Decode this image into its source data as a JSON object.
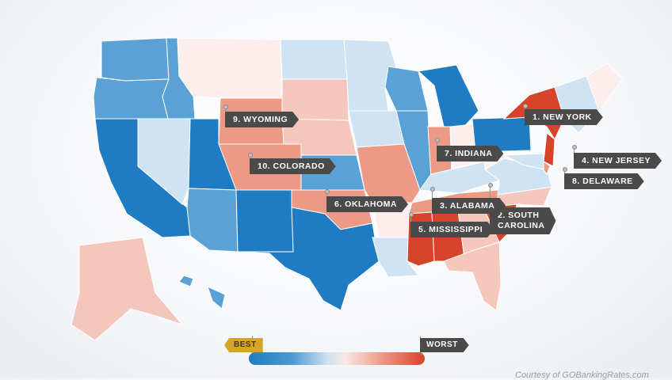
{
  "colors": {
    "best_dark": "#1f7cc2",
    "best_mid": "#5aa2d6",
    "best_light": "#cfe3f2",
    "neutral": "#fbeeed",
    "worst_light": "#f5c6bc",
    "worst_mid": "#ec9a86",
    "worst_dark": "#d6432b"
  },
  "states": [
    {
      "id": "WA",
      "shade": "best_mid"
    },
    {
      "id": "OR",
      "shade": "best_mid"
    },
    {
      "id": "CA",
      "shade": "best_dark"
    },
    {
      "id": "NV",
      "shade": "best_light"
    },
    {
      "id": "ID",
      "shade": "best_mid"
    },
    {
      "id": "MT",
      "shade": "neutral"
    },
    {
      "id": "WY",
      "shade": "worst_mid"
    },
    {
      "id": "UT",
      "shade": "best_dark"
    },
    {
      "id": "AZ",
      "shade": "best_mid"
    },
    {
      "id": "CO",
      "shade": "worst_mid"
    },
    {
      "id": "NM",
      "shade": "best_dark"
    },
    {
      "id": "ND",
      "shade": "best_light"
    },
    {
      "id": "SD",
      "shade": "worst_light"
    },
    {
      "id": "NE",
      "shade": "worst_light"
    },
    {
      "id": "KS",
      "shade": "best_mid"
    },
    {
      "id": "OK",
      "shade": "worst_mid"
    },
    {
      "id": "TX",
      "shade": "best_dark"
    },
    {
      "id": "MN",
      "shade": "best_light"
    },
    {
      "id": "IA",
      "shade": "best_light"
    },
    {
      "id": "MO",
      "shade": "worst_mid"
    },
    {
      "id": "AR",
      "shade": "neutral"
    },
    {
      "id": "LA",
      "shade": "best_light"
    },
    {
      "id": "WI",
      "shade": "best_mid"
    },
    {
      "id": "IL",
      "shade": "best_mid"
    },
    {
      "id": "MI",
      "shade": "best_dark"
    },
    {
      "id": "IN",
      "shade": "worst_mid"
    },
    {
      "id": "OH",
      "shade": "neutral"
    },
    {
      "id": "KY",
      "shade": "best_light"
    },
    {
      "id": "TN",
      "shade": "worst_mid"
    },
    {
      "id": "MS",
      "shade": "worst_dark"
    },
    {
      "id": "AL",
      "shade": "worst_dark"
    },
    {
      "id": "GA",
      "shade": "worst_light"
    },
    {
      "id": "FL",
      "shade": "worst_light"
    },
    {
      "id": "SC",
      "shade": "worst_dark"
    },
    {
      "id": "NC",
      "shade": "worst_light"
    },
    {
      "id": "VA",
      "shade": "best_light"
    },
    {
      "id": "WV",
      "shade": "neutral"
    },
    {
      "id": "PA",
      "shade": "best_dark"
    },
    {
      "id": "NY",
      "shade": "worst_dark"
    },
    {
      "id": "NJ",
      "shade": "worst_dark"
    },
    {
      "id": "DE",
      "shade": "worst_mid"
    },
    {
      "id": "MD",
      "shade": "best_light"
    },
    {
      "id": "New-England",
      "shade": "best_light"
    },
    {
      "id": "ME",
      "shade": "neutral"
    },
    {
      "id": "AK",
      "shade": "worst_light"
    },
    {
      "id": "HI",
      "shade": "best_mid"
    }
  ],
  "rankings": [
    {
      "rank": 1,
      "text": "1. NEW YORK"
    },
    {
      "rank": 2,
      "text": "2. SOUTH",
      "text2": "CAROLINA"
    },
    {
      "rank": 3,
      "text": "3. ALABAMA"
    },
    {
      "rank": 4,
      "text": "4. NEW JERSEY"
    },
    {
      "rank": 5,
      "text": "5. MISSISSIPPI"
    },
    {
      "rank": 6,
      "text": "6. OKLAHOMA"
    },
    {
      "rank": 7,
      "text": "7. INDIANA"
    },
    {
      "rank": 8,
      "text": "8. DELAWARE"
    },
    {
      "rank": 9,
      "text": "9. WYOMING"
    },
    {
      "rank": 10,
      "text": "10. COLORADO"
    }
  ],
  "legend": {
    "best_label": "BEST",
    "worst_label": "WORST"
  },
  "credit": "Courtesy of GOBankingRates.com"
}
